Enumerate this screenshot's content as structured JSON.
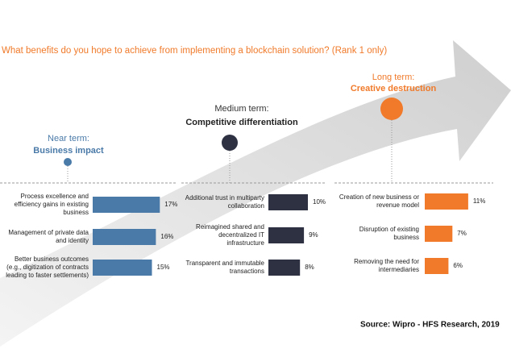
{
  "title": "What benefits do you hope to achieve from implementing a blockchain solution? (Rank 1 only)",
  "source": "Source: Wipro - HFS Research, 2019",
  "chart_data": [
    {
      "type": "bar",
      "orientation": "horizontal",
      "title": "Near term:",
      "subtitle": "Business impact",
      "categories": [
        "Process excellence and efficiency gains in existing business",
        "Management of private data and identity",
        "Better business outcomes (e.g., digitization of contracts leading to faster settlements)"
      ],
      "values": [
        17,
        16,
        15
      ],
      "value_labels": [
        "17%",
        "16%",
        "15%"
      ],
      "color": "#4a7aa8"
    },
    {
      "type": "bar",
      "orientation": "horizontal",
      "title": "Medium term:",
      "subtitle": "Competitive differentiation",
      "categories": [
        "Additional trust in multiparty collaboration",
        "Reimagined shared and decentralized IT infrastructure",
        "Transparent and immutable transactions"
      ],
      "values": [
        10,
        9,
        8
      ],
      "value_labels": [
        "10%",
        "9%",
        "8%"
      ],
      "color": "#2d3142"
    },
    {
      "type": "bar",
      "orientation": "horizontal",
      "title": "Long term:",
      "subtitle": "Creative destruction",
      "categories": [
        "Creation of new business or revenue model",
        "Disruption of existing business",
        "Removing the need for intermediaries"
      ],
      "values": [
        11,
        7,
        6
      ],
      "value_labels": [
        "11%",
        "7%",
        "6%"
      ],
      "color": "#f07a2a"
    }
  ]
}
